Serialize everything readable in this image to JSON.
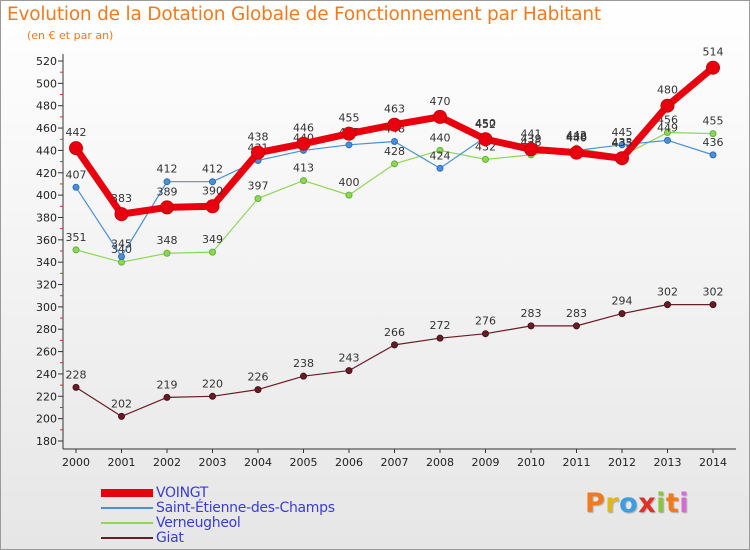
{
  "title": "Evolution de la Dotation Globale de Fonctionnement par Habitant",
  "subtitle": "(en € et par an)",
  "brand": {
    "text": "Proxiti",
    "colors": [
      "#f07a20",
      "#e0b81a",
      "#3c9de0",
      "#e0302a",
      "#8cc63e",
      "#f07a20",
      "#d46ad4"
    ]
  },
  "chart_data": {
    "type": "line",
    "title": "Evolution de la Dotation Globale de Fonctionnement par Habitant",
    "subtitle": "(en € et par an)",
    "xlabel": "",
    "ylabel": "",
    "ylim": [
      180,
      520
    ],
    "yticks": [
      180,
      200,
      220,
      240,
      260,
      280,
      300,
      320,
      340,
      360,
      380,
      400,
      420,
      440,
      460,
      480,
      500,
      520
    ],
    "grid": false,
    "legend": "bottom-left",
    "x": [
      "2000",
      "2001",
      "2002",
      "2003",
      "2004",
      "2005",
      "2006",
      "2007",
      "2008",
      "2009",
      "2010",
      "2011",
      "2012",
      "2013",
      "2014"
    ],
    "series": [
      {
        "name": "VOINGT",
        "color": "#e8000e",
        "values": [
          442,
          383,
          389,
          390,
          438,
          446,
          455,
          463,
          470,
          450,
          441,
          438,
          433,
          480,
          514
        ]
      },
      {
        "name": "Saint-Étienne-des-Champs",
        "color": "#4b8fd6",
        "values": [
          407,
          345,
          412,
          412,
          431,
          440,
          445,
          448,
          424,
          452,
          439,
          440,
          445,
          449,
          436
        ]
      },
      {
        "name": "Verneugheol",
        "color": "#8ed65a",
        "values": [
          351,
          340,
          348,
          349,
          397,
          413,
          400,
          428,
          440,
          432,
          436,
          442,
          435,
          456,
          455
        ]
      },
      {
        "name": "Giat",
        "color": "#6a1c26",
        "values": [
          228,
          202,
          219,
          220,
          226,
          238,
          243,
          266,
          272,
          276,
          283,
          283,
          294,
          302,
          302
        ]
      }
    ]
  }
}
